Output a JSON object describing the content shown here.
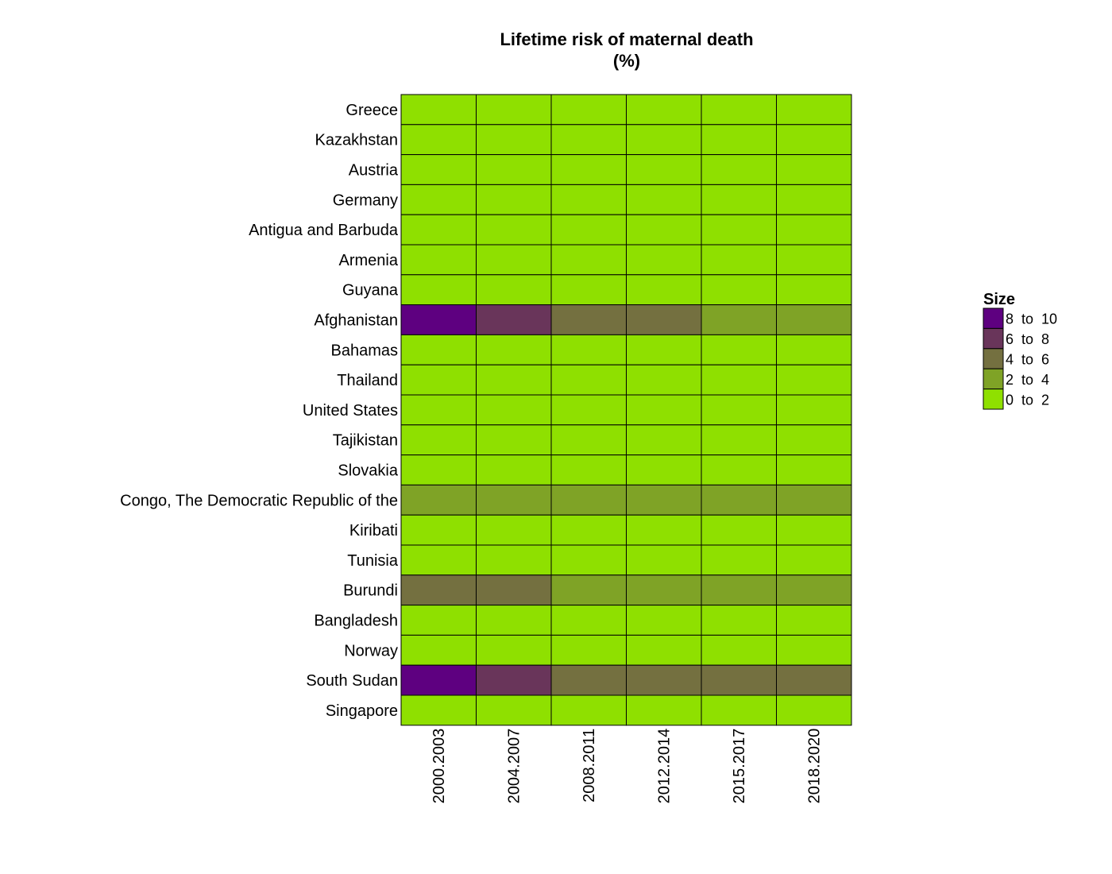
{
  "chart_data": {
    "type": "heatmap",
    "title": "Lifetime risk of maternal death",
    "subtitle": "(%)",
    "x_categories": [
      "2000.2003",
      "2004.2007",
      "2008.2011",
      "2012.2014",
      "2015.2017",
      "2018.2020"
    ],
    "y_categories": [
      "Greece",
      "Kazakhstan",
      "Austria",
      "Germany",
      "Antigua and Barbuda",
      "Armenia",
      "Guyana",
      "Afghanistan",
      "Bahamas",
      "Thailand",
      "United States",
      "Tajikistan",
      "Slovakia",
      "Congo, The Democratic Republic of the",
      "Kiribati",
      "Tunisia",
      "Burundi",
      "Bangladesh",
      "Norway",
      "South Sudan",
      "Singapore"
    ],
    "bin_index_matrix": [
      [
        0,
        0,
        0,
        0,
        0,
        0
      ],
      [
        0,
        0,
        0,
        0,
        0,
        0
      ],
      [
        0,
        0,
        0,
        0,
        0,
        0
      ],
      [
        0,
        0,
        0,
        0,
        0,
        0
      ],
      [
        0,
        0,
        0,
        0,
        0,
        0
      ],
      [
        0,
        0,
        0,
        0,
        0,
        0
      ],
      [
        0,
        0,
        0,
        0,
        0,
        0
      ],
      [
        4,
        3,
        2,
        2,
        1,
        1
      ],
      [
        0,
        0,
        0,
        0,
        0,
        0
      ],
      [
        0,
        0,
        0,
        0,
        0,
        0
      ],
      [
        0,
        0,
        0,
        0,
        0,
        0
      ],
      [
        0,
        0,
        0,
        0,
        0,
        0
      ],
      [
        0,
        0,
        0,
        0,
        0,
        0
      ],
      [
        1,
        1,
        1,
        1,
        1,
        1
      ],
      [
        0,
        0,
        0,
        0,
        0,
        0
      ],
      [
        0,
        0,
        0,
        0,
        0,
        0
      ],
      [
        2,
        2,
        1,
        1,
        1,
        1
      ],
      [
        0,
        0,
        0,
        0,
        0,
        0
      ],
      [
        0,
        0,
        0,
        0,
        0,
        0
      ],
      [
        4,
        3,
        2,
        2,
        2,
        2
      ],
      [
        0,
        0,
        0,
        0,
        0,
        0
      ]
    ],
    "legend": {
      "title": "Size",
      "placement": "right",
      "bins": [
        {
          "label": "0  to  2",
          "color": "#8FE000"
        },
        {
          "label": "2  to  4",
          "color": "#7FA326"
        },
        {
          "label": "4  to  6",
          "color": "#747040"
        },
        {
          "label": "6  to  8",
          "color": "#69355A"
        },
        {
          "label": "8  to  10",
          "color": "#5E0080"
        }
      ]
    }
  }
}
